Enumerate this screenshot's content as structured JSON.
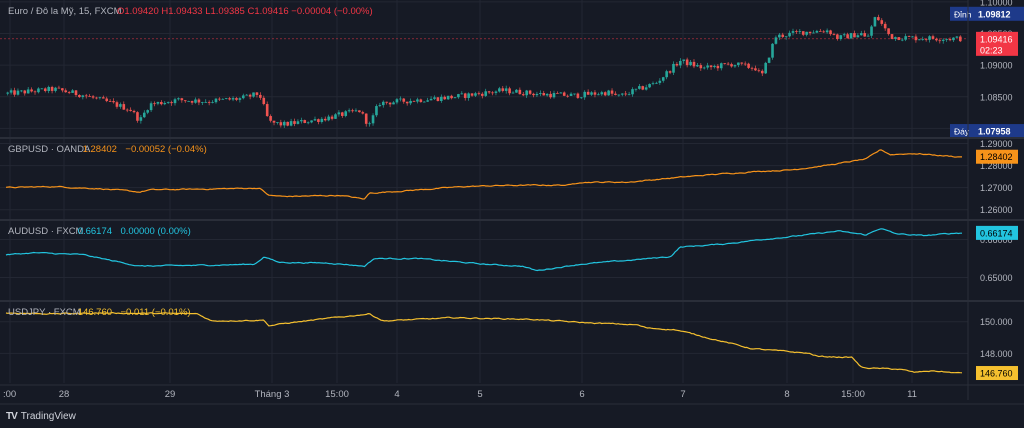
{
  "colors": {
    "background": "#161a25",
    "grid": "#232733",
    "separator": "#2a2e39",
    "text": "#b2b5be",
    "candle_up": "#26a69a",
    "candle_down": "#ef5350",
    "eurusd_label": "#f23645",
    "gbpusd": "#f7931a",
    "audusd": "#22c5e0",
    "usdjpy": "#f5c02f",
    "high_label": "#1e3a8a",
    "low_label": "#1e3a8a"
  },
  "footer": {
    "brand": "TradingView",
    "logo_icon": "tradingview-logo-icon"
  },
  "time_axis": {
    "labels": [
      ":00",
      "28",
      "29",
      "Tháng 3",
      "15:00",
      "4",
      "5",
      "6",
      "7",
      "8",
      "15:00",
      "11"
    ]
  },
  "chart_data": [
    {
      "type": "candlestick",
      "id": "eurusd",
      "legend": {
        "title": "Euro / Đô la Mỹ, 15, FXCM",
        "ohlc": "O1.09420 H1.09433 L1.09385 C1.09416 −0.00004 (−0.00%)"
      },
      "y_ticks": [
        "1.10000",
        "1.09500",
        "1.09000",
        "1.08500",
        "1.08000"
      ],
      "ylim": [
        1.0788,
        1.1003
      ],
      "last": "1.09416",
      "countdown": "02:23",
      "high_label": {
        "text": "Đỉnh",
        "value": "1.09812"
      },
      "low_label": {
        "text": "Đáy",
        "value": "1.07958"
      },
      "keypoints": [
        [
          0,
          1.0855
        ],
        [
          0.05,
          1.0862
        ],
        [
          0.08,
          1.0853
        ],
        [
          0.11,
          1.084
        ],
        [
          0.13,
          1.083
        ],
        [
          0.14,
          1.0812
        ],
        [
          0.15,
          1.0838
        ],
        [
          0.18,
          1.0845
        ],
        [
          0.21,
          1.0843
        ],
        [
          0.245,
          1.0847
        ],
        [
          0.265,
          1.0855
        ],
        [
          0.275,
          1.081
        ],
        [
          0.29,
          1.0806
        ],
        [
          0.33,
          1.0815
        ],
        [
          0.37,
          1.0828
        ],
        [
          0.38,
          1.0804
        ],
        [
          0.39,
          1.084
        ],
        [
          0.43,
          1.0845
        ],
        [
          0.47,
          1.085
        ],
        [
          0.52,
          1.086
        ],
        [
          0.56,
          1.0854
        ],
        [
          0.595,
          1.0852
        ],
        [
          0.63,
          1.0857
        ],
        [
          0.64,
          1.085
        ],
        [
          0.68,
          1.0872
        ],
        [
          0.705,
          1.0907
        ],
        [
          0.73,
          1.0895
        ],
        [
          0.76,
          1.0902
        ],
        [
          0.785,
          1.0895
        ],
        [
          0.79,
          1.088
        ],
        [
          0.805,
          1.0945
        ],
        [
          0.83,
          1.0952
        ],
        [
          0.86,
          1.0955
        ],
        [
          0.87,
          1.0943
        ],
        [
          0.895,
          1.095
        ],
        [
          0.9,
          1.094
        ],
        [
          0.91,
          1.0978
        ],
        [
          0.925,
          1.0945
        ],
        [
          0.95,
          1.0943
        ],
        [
          0.995,
          1.0942
        ]
      ]
    },
    {
      "type": "line",
      "id": "gbpusd",
      "legend": {
        "title": "GBPUSD · OANDA",
        "value": "1.28402",
        "change": "−0.00052 (−0.04%)"
      },
      "y_ticks": [
        "1.29000",
        "1.28000",
        "1.27000",
        "1.26000"
      ],
      "ylim": [
        1.2558,
        1.2916
      ],
      "last": "1.28402",
      "keypoints": [
        [
          0,
          1.27
        ],
        [
          0.05,
          1.2705
        ],
        [
          0.1,
          1.2695
        ],
        [
          0.14,
          1.268
        ],
        [
          0.15,
          1.269
        ],
        [
          0.2,
          1.2693
        ],
        [
          0.265,
          1.2698
        ],
        [
          0.275,
          1.2665
        ],
        [
          0.29,
          1.266
        ],
        [
          0.35,
          1.2665
        ],
        [
          0.375,
          1.2648
        ],
        [
          0.38,
          1.2675
        ],
        [
          0.43,
          1.269
        ],
        [
          0.48,
          1.2705
        ],
        [
          0.52,
          1.271
        ],
        [
          0.59,
          1.2712
        ],
        [
          0.6,
          1.2725
        ],
        [
          0.65,
          1.2725
        ],
        [
          0.7,
          1.2745
        ],
        [
          0.74,
          1.276
        ],
        [
          0.79,
          1.2775
        ],
        [
          0.82,
          1.278
        ],
        [
          0.865,
          1.2805
        ],
        [
          0.9,
          1.283
        ],
        [
          0.915,
          1.2872
        ],
        [
          0.925,
          1.285
        ],
        [
          0.95,
          1.2855
        ],
        [
          0.995,
          1.284
        ]
      ]
    },
    {
      "type": "line",
      "id": "audusd",
      "legend": {
        "title": "AUDUSD · FXCM",
        "value": "0.66174",
        "change": "0.00000 (0.00%)"
      },
      "y_ticks": [
        "0.66000",
        "0.65000"
      ],
      "ylim": [
        0.6441,
        0.6646
      ],
      "last": "0.66174",
      "keypoints": [
        [
          0,
          0.656
        ],
        [
          0.03,
          0.6565
        ],
        [
          0.08,
          0.656
        ],
        [
          0.11,
          0.6545
        ],
        [
          0.14,
          0.653
        ],
        [
          0.2,
          0.6532
        ],
        [
          0.26,
          0.6535
        ],
        [
          0.27,
          0.6555
        ],
        [
          0.285,
          0.654
        ],
        [
          0.34,
          0.6538
        ],
        [
          0.375,
          0.653
        ],
        [
          0.385,
          0.655
        ],
        [
          0.43,
          0.655
        ],
        [
          0.5,
          0.6535
        ],
        [
          0.54,
          0.653
        ],
        [
          0.555,
          0.6518
        ],
        [
          0.6,
          0.6535
        ],
        [
          0.65,
          0.6545
        ],
        [
          0.695,
          0.6555
        ],
        [
          0.705,
          0.658
        ],
        [
          0.75,
          0.6588
        ],
        [
          0.79,
          0.66
        ],
        [
          0.83,
          0.661
        ],
        [
          0.87,
          0.6622
        ],
        [
          0.9,
          0.6612
        ],
        [
          0.915,
          0.663
        ],
        [
          0.93,
          0.6615
        ],
        [
          0.96,
          0.661
        ],
        [
          0.995,
          0.6617
        ]
      ]
    },
    {
      "type": "line",
      "id": "usdjpy",
      "legend": {
        "title": "USDJPY · FXCM",
        "value": "146.760",
        "change": "−0.011 (−0.01%)"
      },
      "y_ticks": [
        "150.000",
        "148.000"
      ],
      "ylim": [
        146.13,
        151.18
      ],
      "last": "146.760",
      "keypoints": [
        [
          0,
          150.55
        ],
        [
          0.05,
          150.5
        ],
        [
          0.1,
          150.55
        ],
        [
          0.2,
          150.5
        ],
        [
          0.215,
          150.05
        ],
        [
          0.27,
          150.1
        ],
        [
          0.275,
          149.75
        ],
        [
          0.3,
          149.95
        ],
        [
          0.38,
          150.5
        ],
        [
          0.395,
          150.05
        ],
        [
          0.47,
          150.25
        ],
        [
          0.55,
          150.15
        ],
        [
          0.6,
          149.95
        ],
        [
          0.66,
          149.8
        ],
        [
          0.67,
          149.6
        ],
        [
          0.7,
          149.5
        ],
        [
          0.74,
          148.9
        ],
        [
          0.78,
          148.3
        ],
        [
          0.8,
          148.2
        ],
        [
          0.84,
          148.0
        ],
        [
          0.85,
          147.8
        ],
        [
          0.885,
          147.75
        ],
        [
          0.895,
          147.1
        ],
        [
          0.91,
          147.05
        ],
        [
          0.935,
          147.0
        ],
        [
          0.95,
          146.8
        ],
        [
          0.97,
          146.9
        ],
        [
          0.995,
          146.76
        ]
      ]
    }
  ]
}
